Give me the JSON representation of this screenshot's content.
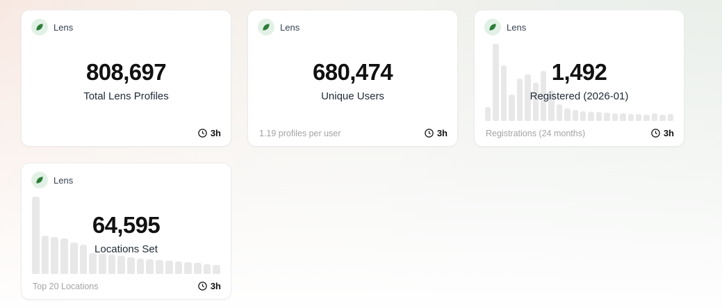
{
  "theme": {
    "card_background": "#ffffff",
    "icon_background": "#e2f1e5",
    "icon_green": "#2e7d3a",
    "bar_color": "#e8e8e8",
    "text_dark": "#111111",
    "text_muted": "#a3a3a3",
    "page_gradient": [
      "#f8e8e2",
      "#f3f1ed",
      "#e9eee9"
    ]
  },
  "cards": [
    {
      "source_label": "Lens",
      "value": "808,697",
      "label": "Total Lens Profiles",
      "footnote": "",
      "age": "3h"
    },
    {
      "source_label": "Lens",
      "value": "680,474",
      "label": "Unique Users",
      "footnote": "1.19 profiles per user",
      "age": "3h"
    },
    {
      "source_label": "Lens",
      "value": "1,492",
      "label": "Registered (2026-01)",
      "footnote": "Registrations (24 months)",
      "age": "3h"
    },
    {
      "source_label": "Lens",
      "value": "64,595",
      "label": "Locations Set",
      "footnote": "Top 20 Locations",
      "age": "3h"
    }
  ],
  "chart_data": [
    {
      "type": "bar",
      "title": "Registrations (24 months)",
      "value_label": "Registered (2026-01): 1,492",
      "x_note": "24 monthly bars",
      "ylim": [
        0,
        100
      ],
      "values": [
        18,
        100,
        72,
        34,
        55,
        60,
        50,
        65,
        40,
        22,
        16,
        14,
        13,
        12,
        12,
        11,
        10,
        10,
        9,
        9,
        8,
        10,
        8,
        9
      ]
    },
    {
      "type": "bar",
      "title": "Top 20 Locations",
      "value_label": "Locations Set: 64,595",
      "x_note": "20 location bars, largest to smallest",
      "ylim": [
        0,
        100
      ],
      "values": [
        100,
        50,
        48,
        46,
        41,
        38,
        27,
        26,
        25,
        23,
        22,
        20,
        19,
        18,
        17,
        16,
        15,
        14,
        13,
        12
      ]
    }
  ]
}
